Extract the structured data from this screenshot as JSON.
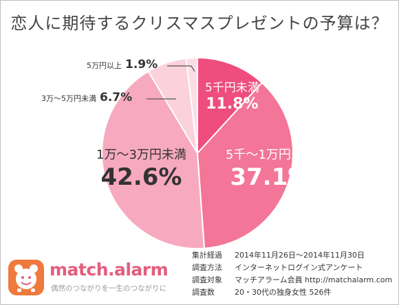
{
  "chart_data": {
    "type": "pie",
    "title": "恋人に期待するクリスマスプレゼントの予算は？",
    "slices": [
      {
        "label": "5千円未満",
        "value": 11.8,
        "display": "11.8%",
        "color": "#ee4d7e"
      },
      {
        "label": "5千～1万円未満",
        "value": 37.1,
        "display": "37.1%",
        "color": "#f37597"
      },
      {
        "label": "1万～3万円未満",
        "value": 42.6,
        "display": "42.6%",
        "color": "#f7a9c0"
      },
      {
        "label": "3万～5万円未満",
        "value": 6.7,
        "display": "6.7%",
        "color": "#fad1dc"
      },
      {
        "label": "5万円以上",
        "value": 1.9,
        "display": "1.9%",
        "color": "#fcdde5"
      }
    ],
    "start_angle": "12 o'clock",
    "direction": "clockwise"
  },
  "brand": {
    "name": "match.alarm",
    "tagline": "偶然のつながりを一生のつながりに"
  },
  "survey": [
    {
      "key": "集計経過",
      "value": "2014年11月26日～2014年11月30日"
    },
    {
      "key": "調査方法",
      "value": "インターネットログイン式アンケート"
    },
    {
      "key": "調査対象",
      "value": "マッチアラーム会員 http://matchalarm.com"
    },
    {
      "key": "調査数",
      "value": "20・30代の独身女性 526件"
    }
  ],
  "icons": {
    "logo": "alarm-clock-mascot-icon"
  }
}
